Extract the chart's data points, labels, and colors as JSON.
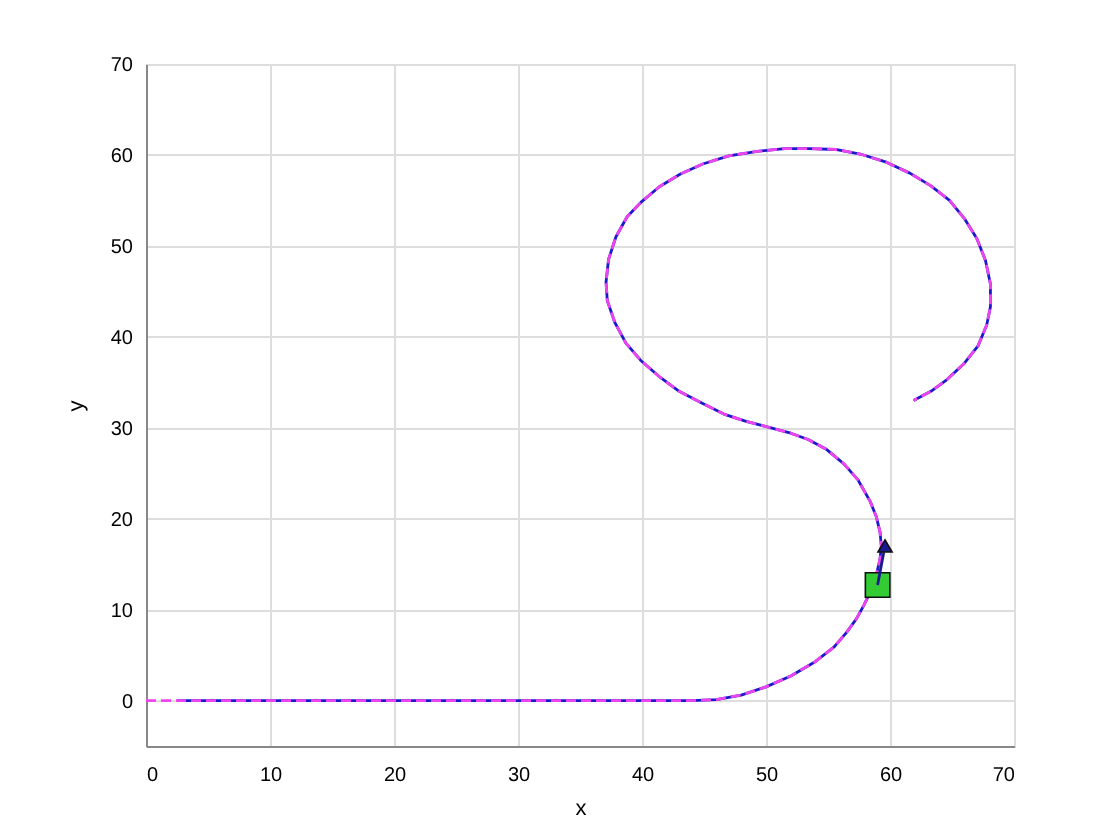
{
  "chart_data": {
    "type": "line",
    "xlabel": "x",
    "ylabel": "y",
    "xlim": [
      0,
      70
    ],
    "ylim": [
      -5,
      70
    ],
    "xticks": [
      0,
      10,
      20,
      30,
      40,
      50,
      60,
      70
    ],
    "yticks": [
      0,
      10,
      20,
      30,
      40,
      50,
      60,
      70
    ],
    "grid": true,
    "series": [
      {
        "color": "#1a1acc",
        "line_style": "solid",
        "x": [
          2.5,
          5,
          10,
          15,
          20,
          25,
          30,
          35,
          40,
          44,
          46,
          48,
          50,
          52,
          54,
          55.5,
          56.5,
          57.3,
          57.9,
          58.5,
          58.9,
          59.2,
          59.3,
          59.2,
          58.9,
          58.4,
          57.4,
          56.3,
          54.9,
          53.4,
          52.0,
          50.1,
          48.4,
          46.6,
          44.7,
          43.0,
          41.5,
          39.9,
          38.7,
          37.8,
          37.2,
          37.1,
          37.3,
          37.9,
          38.8,
          40.0,
          41.4,
          43.1,
          44.9,
          47.0,
          49.3,
          51.5,
          53.5,
          55.6,
          57.6,
          59.7,
          61.6,
          63.3,
          64.8,
          66.0,
          67.0,
          67.7,
          68.1,
          68.1,
          67.8,
          67.1,
          66.0,
          64.6,
          63.3,
          61.9
        ],
        "values": [
          0,
          0,
          0,
          0,
          0,
          0,
          0,
          0,
          0,
          0,
          0.1,
          0.6,
          1.5,
          2.7,
          4.3,
          5.9,
          7.5,
          9.0,
          10.5,
          12.2,
          13.8,
          15.6,
          17.0,
          18.5,
          20.2,
          21.9,
          24.3,
          26.0,
          27.6,
          28.7,
          29.4,
          30.1,
          30.7,
          31.5,
          32.8,
          34.0,
          35.5,
          37.4,
          39.3,
          41.6,
          44.0,
          46.0,
          48.5,
          51.0,
          53.2,
          54.9,
          56.5,
          57.9,
          59.0,
          59.9,
          60.4,
          60.7,
          60.7,
          60.6,
          60.1,
          59.2,
          58.0,
          56.6,
          55.0,
          53.0,
          50.8,
          48.4,
          45.8,
          43.3,
          41.3,
          39.0,
          37.1,
          35.3,
          34.0,
          33.0
        ]
      },
      {
        "color": "#ee44ee",
        "line_style": "dashed",
        "x": [
          0,
          5,
          10,
          15,
          20,
          25,
          30,
          35,
          40,
          44,
          46,
          48,
          50,
          52,
          54,
          55.5,
          56.5,
          57.3,
          57.9,
          58.5,
          58.9,
          59.2,
          59.3,
          59.2,
          58.9,
          58.4,
          57.4,
          56.3,
          54.9,
          53.4,
          52.0,
          50.1,
          48.4,
          46.6,
          44.7,
          43.0,
          41.5,
          39.9,
          38.7,
          37.8,
          37.2,
          37.1,
          37.3,
          37.9,
          38.8,
          40.0,
          41.4,
          43.1,
          44.9,
          47.0,
          49.3,
          51.5,
          53.5,
          55.6,
          57.6,
          59.7,
          61.6,
          63.3,
          64.8,
          66.0,
          67.0,
          67.7,
          68.1,
          68.1,
          67.8,
          67.1,
          66.0,
          64.6,
          63.3,
          61.9
        ],
        "values": [
          0,
          0,
          0,
          0,
          0,
          0,
          0,
          0,
          0,
          0,
          0.1,
          0.6,
          1.5,
          2.7,
          4.3,
          5.9,
          7.5,
          9.0,
          10.5,
          12.2,
          13.8,
          15.6,
          17.0,
          18.5,
          20.2,
          21.9,
          24.3,
          26.0,
          27.6,
          28.7,
          29.4,
          30.1,
          30.7,
          31.5,
          32.8,
          34.0,
          35.5,
          37.4,
          39.3,
          41.6,
          44.0,
          46.0,
          48.5,
          51.0,
          53.2,
          54.9,
          56.5,
          57.9,
          59.0,
          59.9,
          60.4,
          60.7,
          60.7,
          60.6,
          60.1,
          59.2,
          58.0,
          56.6,
          55.0,
          53.0,
          50.8,
          48.4,
          45.8,
          43.3,
          41.3,
          39.0,
          37.1,
          35.3,
          34.0,
          33.0
        ]
      },
      {
        "type": "scatter",
        "marker": "square",
        "color": "#33cc33",
        "x": [
          59.0
        ],
        "values": [
          12.7
        ]
      },
      {
        "type": "line",
        "color": "#1a1a8c",
        "line_style": "solid",
        "x": [
          59.0,
          59.5
        ],
        "values": [
          12.7,
          16.3
        ]
      },
      {
        "type": "scatter",
        "marker": "triangle",
        "color": "#1a1a8c",
        "x": [
          59.6
        ],
        "values": [
          17.0
        ]
      }
    ]
  }
}
